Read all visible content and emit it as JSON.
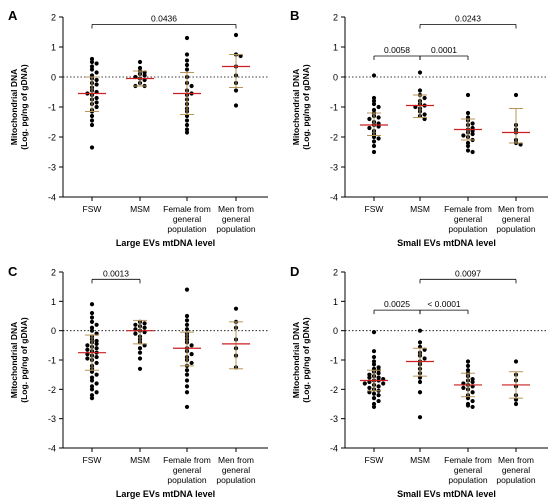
{
  "colors": {
    "dot": "#000000",
    "mean_bar": "#cc1f1f",
    "sd_bar": "#b8965a",
    "axis": "#000000",
    "zero_line": "#000000"
  },
  "chart_data": [
    {
      "type": "scatter",
      "panel_label": "A",
      "title": "",
      "xlabel": "Large EVs mtDNA level",
      "ylabel_line1": "Mitochondrial DNA",
      "ylabel_line2": "(Log. pg/ng of gDNA)",
      "categories": [
        "FSW",
        "MSM",
        "Female from general population",
        "Men from general population"
      ],
      "category_label_lines": [
        [
          "FSW"
        ],
        [
          "MSM"
        ],
        [
          "Female from",
          "general",
          "population"
        ],
        [
          "Men from",
          "general",
          "population"
        ]
      ],
      "ylim": [
        -4,
        2
      ],
      "yticks": [
        -4,
        -3,
        -2,
        -1,
        0,
        1,
        2
      ],
      "reference_line": 0,
      "series": [
        {
          "mean": -0.55,
          "sd_low": -1.15,
          "sd_high": 0.0,
          "points": [
            0.6,
            0.5,
            0.45,
            0.35,
            0.25,
            0.15,
            0.05,
            -0.05,
            -0.1,
            -0.2,
            -0.25,
            -0.35,
            -0.45,
            -0.5,
            -0.55,
            -0.6,
            -0.7,
            -0.75,
            -0.85,
            -0.9,
            -1.0,
            -1.1,
            -1.15,
            -1.3,
            -1.45,
            -1.6,
            -2.35
          ]
        },
        {
          "mean": -0.05,
          "sd_low": -0.3,
          "sd_high": 0.2,
          "points": [
            0.5,
            0.3,
            0.2,
            0.15,
            0.1,
            0.05,
            0.0,
            -0.05,
            -0.1,
            -0.2,
            -0.3,
            -0.3
          ]
        },
        {
          "mean": -0.55,
          "sd_low": -1.25,
          "sd_high": 0.15,
          "points": [
            1.3,
            0.75,
            0.55,
            0.4,
            0.25,
            0.0,
            -0.2,
            -0.3,
            -0.45,
            -0.55,
            -0.6,
            -0.75,
            -0.9,
            -1.05,
            -1.15,
            -1.3,
            -1.45,
            -1.6,
            -1.75,
            -1.85
          ]
        },
        {
          "mean": 0.35,
          "sd_low": -0.35,
          "sd_high": 0.75,
          "points": [
            1.4,
            0.75,
            0.7,
            0.35,
            0.05,
            -0.2,
            -0.45,
            -0.95
          ]
        }
      ],
      "comparisons": [
        {
          "from": 0,
          "to": 3,
          "y": 1.75,
          "label": "0.0436"
        }
      ]
    },
    {
      "type": "scatter",
      "panel_label": "B",
      "title": "",
      "xlabel": "Small EVs mtDNA level",
      "ylabel_line1": "Mitochondrial DNA",
      "ylabel_line2": "(Log. pg/ng of gDNA)",
      "categories": [
        "FSW",
        "MSM",
        "Female from general population",
        "Men from general population"
      ],
      "category_label_lines": [
        [
          "FSW"
        ],
        [
          "MSM"
        ],
        [
          "Female from",
          "general",
          "population"
        ],
        [
          "Men from",
          "general",
          "population"
        ]
      ],
      "ylim": [
        -4,
        2
      ],
      "yticks": [
        -4,
        -3,
        -2,
        -1,
        0,
        1,
        2
      ],
      "reference_line": 0,
      "series": [
        {
          "mean": -1.6,
          "sd_low": -1.95,
          "sd_high": -1.2,
          "points": [
            0.05,
            -0.7,
            -0.8,
            -0.9,
            -1.0,
            -1.1,
            -1.2,
            -1.3,
            -1.35,
            -1.4,
            -1.5,
            -1.55,
            -1.6,
            -1.65,
            -1.7,
            -1.8,
            -1.9,
            -2.0,
            -2.05,
            -2.15,
            -2.3,
            -2.5
          ]
        },
        {
          "mean": -0.95,
          "sd_low": -1.35,
          "sd_high": -0.6,
          "points": [
            0.15,
            -0.45,
            -0.6,
            -0.7,
            -0.8,
            -0.9,
            -0.95,
            -1.0,
            -1.05,
            -1.15,
            -1.25,
            -1.3,
            -1.4
          ]
        },
        {
          "mean": -1.75,
          "sd_low": -2.1,
          "sd_high": -1.4,
          "points": [
            -0.6,
            -1.2,
            -1.35,
            -1.45,
            -1.55,
            -1.6,
            -1.7,
            -1.75,
            -1.8,
            -1.85,
            -1.9,
            -1.95,
            -2.0,
            -2.1,
            -2.2,
            -2.3,
            -2.45,
            -2.5
          ]
        },
        {
          "mean": -1.85,
          "sd_low": -2.2,
          "sd_high": -1.05,
          "points": [
            -0.6,
            -1.6,
            -1.75,
            -1.85,
            -2.1,
            -2.2,
            -2.25
          ]
        }
      ],
      "comparisons": [
        {
          "from": 1,
          "to": 3,
          "y": 1.75,
          "label": "0.0243"
        },
        {
          "from": 0,
          "to": 1,
          "y": 0.7,
          "label": "0.0058"
        },
        {
          "from": 1,
          "to": 2,
          "y": 0.7,
          "label": "0.0001"
        }
      ]
    },
    {
      "type": "scatter",
      "panel_label": "C",
      "title": "",
      "xlabel": "Large EVs mtDNA level",
      "ylabel_line1": "Mitochondrial DNA",
      "ylabel_line2": "(Log. pg/ng of gDNA)",
      "categories": [
        "FSW",
        "MSM",
        "Female from general population",
        "Men from general population"
      ],
      "category_label_lines": [
        [
          "FSW"
        ],
        [
          "MSM"
        ],
        [
          "Female from",
          "general",
          "population"
        ],
        [
          "Men from",
          "general",
          "population"
        ]
      ],
      "ylim": [
        -4,
        2
      ],
      "yticks": [
        -4,
        -3,
        -2,
        -1,
        0,
        1,
        2
      ],
      "reference_line": 0,
      "series": [
        {
          "mean": -0.75,
          "sd_low": -1.35,
          "sd_high": -0.15,
          "points": [
            0.9,
            0.6,
            0.45,
            0.3,
            0.2,
            0.1,
            0.0,
            -0.1,
            -0.2,
            -0.3,
            -0.35,
            -0.4,
            -0.45,
            -0.5,
            -0.55,
            -0.6,
            -0.65,
            -0.7,
            -0.75,
            -0.8,
            -0.85,
            -0.9,
            -0.95,
            -1.0,
            -1.1,
            -1.2,
            -1.3,
            -1.4,
            -1.5,
            -1.6,
            -1.7,
            -1.8,
            -1.9,
            -2.0,
            -2.1,
            -2.2,
            -2.3
          ]
        },
        {
          "mean": 0.0,
          "sd_low": -0.45,
          "sd_high": 0.35,
          "points": [
            0.3,
            0.25,
            0.2,
            0.15,
            0.1,
            0.05,
            0.0,
            -0.05,
            -0.1,
            -0.2,
            -0.3,
            -0.4,
            -0.5,
            -0.6,
            -0.75,
            -0.95,
            -1.3
          ]
        },
        {
          "mean": -0.6,
          "sd_low": -1.2,
          "sd_high": -0.05,
          "points": [
            1.4,
            0.5,
            0.35,
            0.2,
            0.05,
            -0.1,
            -0.2,
            -0.3,
            -0.4,
            -0.5,
            -0.6,
            -0.7,
            -0.8,
            -0.9,
            -1.0,
            -1.1,
            -1.2,
            -1.35,
            -1.5,
            -1.7,
            -1.9,
            -2.1,
            -2.6
          ]
        },
        {
          "mean": -0.45,
          "sd_low": -1.3,
          "sd_high": 0.3,
          "points": [
            0.75,
            0.3,
            0.1,
            -0.3,
            -0.6,
            -0.85,
            -1.25
          ]
        }
      ],
      "comparisons": [
        {
          "from": 0,
          "to": 1,
          "y": 1.75,
          "label": "0.0013"
        }
      ]
    },
    {
      "type": "scatter",
      "panel_label": "D",
      "title": "",
      "xlabel": "Small EVs mtDNA level",
      "ylabel_line1": "Mitochondrial DNA",
      "ylabel_line2": "(Log. pg/ng of gDNA)",
      "categories": [
        "FSW",
        "MSM",
        "Female from general population",
        "Men from general population"
      ],
      "category_label_lines": [
        [
          "FSW"
        ],
        [
          "MSM"
        ],
        [
          "Female from",
          "general",
          "population"
        ],
        [
          "Men from",
          "general",
          "population"
        ]
      ],
      "ylim": [
        -4,
        2
      ],
      "yticks": [
        -4,
        -3,
        -2,
        -1,
        0,
        1,
        2
      ],
      "reference_line": 0,
      "series": [
        {
          "mean": -1.7,
          "sd_low": -2.05,
          "sd_high": -1.35,
          "points": [
            -0.05,
            -0.7,
            -0.9,
            -1.05,
            -1.15,
            -1.25,
            -1.3,
            -1.35,
            -1.4,
            -1.45,
            -1.5,
            -1.55,
            -1.6,
            -1.6,
            -1.65,
            -1.7,
            -1.7,
            -1.75,
            -1.8,
            -1.8,
            -1.85,
            -1.9,
            -1.95,
            -2.0,
            -2.05,
            -2.1,
            -2.15,
            -2.2,
            -2.3,
            -2.4,
            -2.5,
            -2.6
          ]
        },
        {
          "mean": -1.05,
          "sd_low": -1.55,
          "sd_high": -0.6,
          "points": [
            0.0,
            -0.4,
            -0.55,
            -0.65,
            -0.75,
            -0.85,
            -0.95,
            -1.05,
            -1.15,
            -1.3,
            -1.45,
            -1.6,
            -1.75,
            -2.1,
            -2.95
          ]
        },
        {
          "mean": -1.85,
          "sd_low": -2.25,
          "sd_high": -1.45,
          "points": [
            -1.05,
            -1.2,
            -1.35,
            -1.45,
            -1.55,
            -1.65,
            -1.7,
            -1.75,
            -1.8,
            -1.85,
            -1.9,
            -1.95,
            -2.0,
            -2.1,
            -2.2,
            -2.3,
            -2.4,
            -2.5,
            -2.55,
            -2.6
          ]
        },
        {
          "mean": -1.85,
          "sd_low": -2.3,
          "sd_high": -1.4,
          "points": [
            -1.05,
            -1.5,
            -1.7,
            -1.9,
            -2.2,
            -2.35,
            -2.5
          ]
        }
      ],
      "comparisons": [
        {
          "from": 1,
          "to": 3,
          "y": 1.75,
          "label": "0.0097"
        },
        {
          "from": 0,
          "to": 1,
          "y": 0.7,
          "label": "0.0025"
        },
        {
          "from": 1,
          "to": 2,
          "y": 0.7,
          "label": "< 0.0001"
        }
      ]
    }
  ]
}
